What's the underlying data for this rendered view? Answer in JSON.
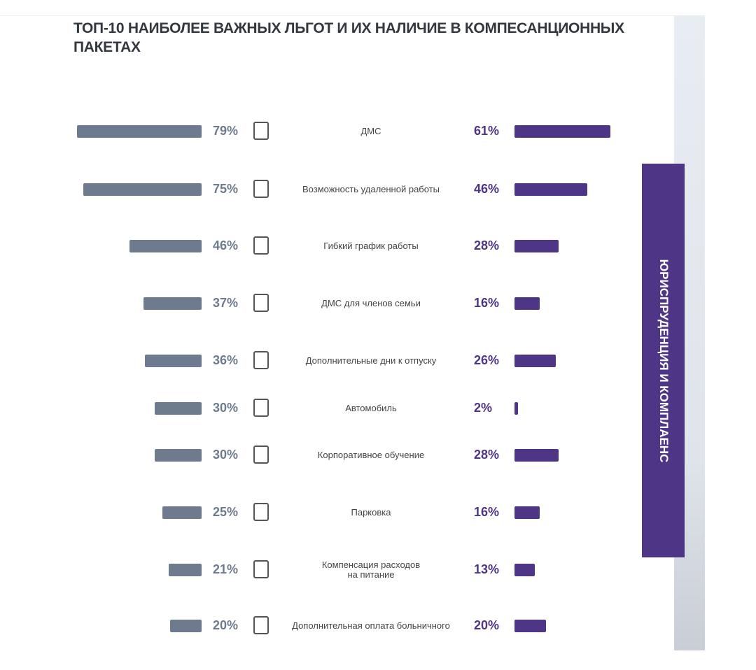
{
  "chart_data": {
    "type": "butterfly",
    "title": "ТОП-10 НАИБОЛЕЕ ВАЖНЫХ ЛЬГОТ И ИХ НАЛИЧИЕ В КОМПЕСАНЦИОННЫХ ПАКЕТАХ",
    "side_label": "ЮРИСПРУДЕНЦИЯ И КОМПЛАЕНС",
    "categories": [
      "ДМС",
      "Возможность удаленной работы",
      "Гибкий график работы",
      "ДМС для членов семьи",
      "Дополнительные дни к отпуску",
      "Автомобиль",
      "Корпоративное обучение",
      "Парковка",
      "Компенсация расходов\nна питание",
      "Дополнительная оплата больничного"
    ],
    "series": [
      {
        "color": "#6e7b8e",
        "values": [
          79,
          75,
          46,
          37,
          36,
          30,
          30,
          25,
          21,
          20
        ],
        "value_labels": [
          "79%",
          "75%",
          "46%",
          "37%",
          "36%",
          "30%",
          "30%",
          "25%",
          "21%",
          "20%"
        ]
      },
      {
        "color": "#4f3585",
        "values": [
          61,
          46,
          28,
          16,
          26,
          2,
          28,
          16,
          13,
          20
        ],
        "value_labels": [
          "61%",
          "46%",
          "28%",
          "16%",
          "26%",
          "2%",
          "28%",
          "16%",
          "13%",
          "20%"
        ]
      }
    ]
  }
}
